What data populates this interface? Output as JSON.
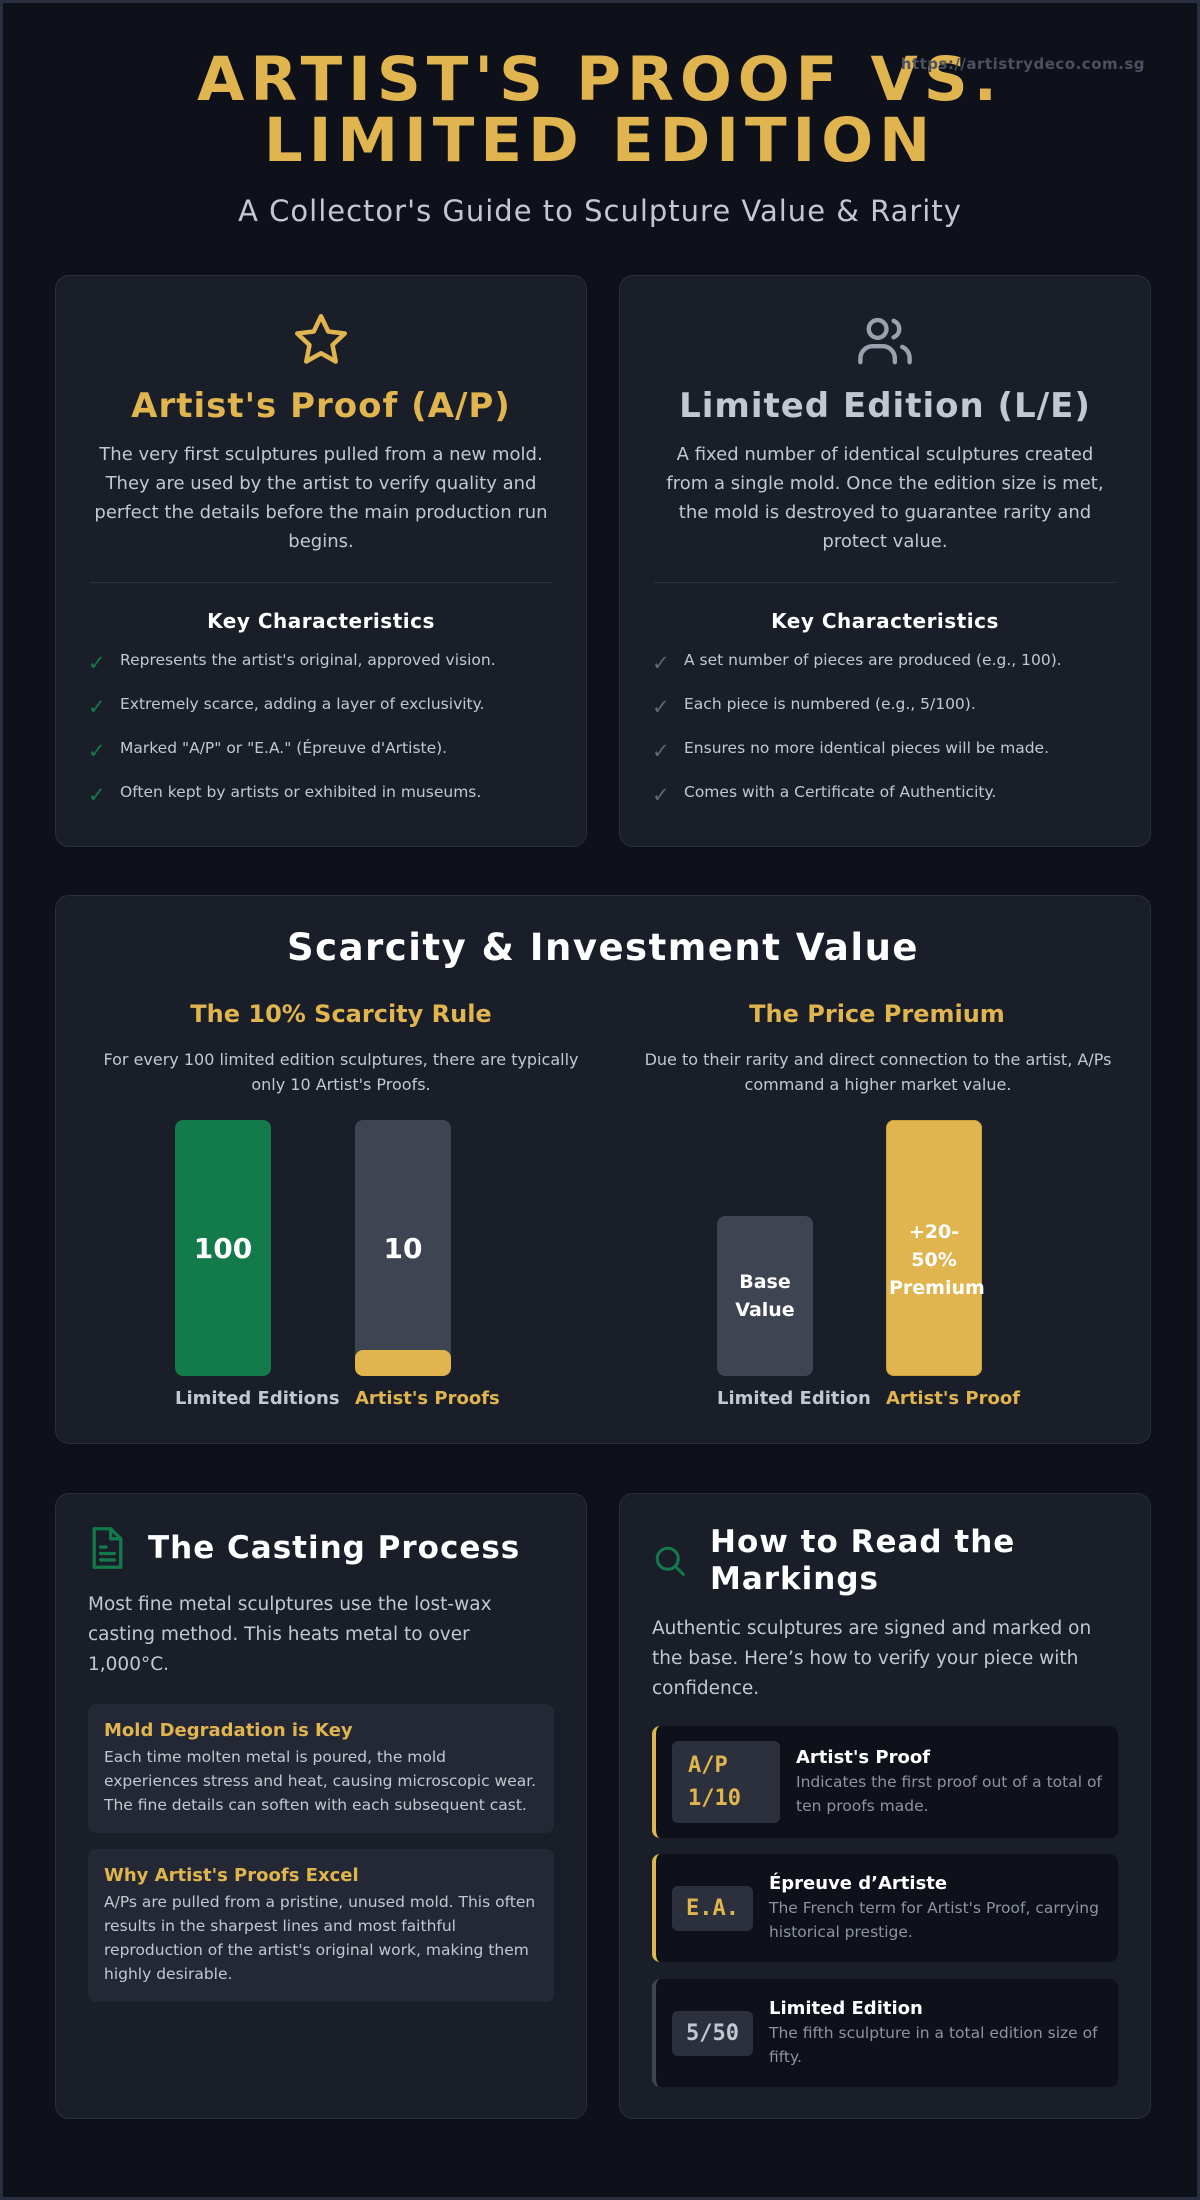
{
  "header": {
    "url": "https://artistrydeco.com.sg",
    "title_line1": "ARTIST'S PROOF VS.",
    "title_line2": "LIMITED EDITION",
    "subtitle": "A Collector's Guide to Sculpture Value & Rarity"
  },
  "colors": {
    "gold": "#e0b54f",
    "green": "#137a4b",
    "slate": "#3f4452",
    "background": "#0e111a",
    "card": "#1a1e28"
  },
  "artist_proof": {
    "icon": "star-icon",
    "title": "Artist's Proof (A/P)",
    "description": "The very first sculptures pulled from a new mold. They are used by the artist to verify quality and perfect the details before the main production run begins.",
    "key_title": "Key Characteristics",
    "items": [
      "Represents the artist's original, approved vision.",
      "Extremely scarce, adding a layer of exclusivity.",
      "Marked \"A/P\" or \"E.A.\" (Épreuve d'Artiste).",
      "Often kept by artists or exhibited in museums."
    ]
  },
  "limited_edition": {
    "icon": "users-icon",
    "title": "Limited Edition (L/E)",
    "description": "A fixed number of identical sculptures created from a single mold. Once the edition size is met, the mold is destroyed to guarantee rarity and protect value.",
    "key_title": "Key Characteristics",
    "items": [
      "A set number of pieces are produced (e.g., 100).",
      "Each piece is numbered (e.g., 5/100).",
      "Ensures no more identical pieces will be made.",
      "Comes with a Certificate of Authenticity."
    ]
  },
  "scarcity": {
    "title": "Scarcity & Investment Value",
    "rule": {
      "title": "The 10% Scarcity Rule",
      "description": "For every 100 limited edition sculptures, there are typically only 10 Artist's Proofs.",
      "bars": [
        {
          "value": 100,
          "value_label": "100",
          "label": "Limited Editions"
        },
        {
          "value": 10,
          "value_label": "10",
          "label": "Artist's Proofs"
        }
      ]
    },
    "premium": {
      "title": "The Price Premium",
      "description": "Due to their rarity and direct connection to the artist, A/Ps command a higher market value.",
      "bars": [
        {
          "value_label": "Base Value",
          "label": "Limited Edition"
        },
        {
          "value_label": "+20-50% Premium",
          "label": "Artist's Proof"
        }
      ]
    }
  },
  "casting": {
    "icon": "document-icon",
    "title": "The Casting Process",
    "intro": "Most fine metal sculptures use the lost-wax casting method. This heats metal to over 1,000°C.",
    "boxes": [
      {
        "title": "Mold Degradation is Key",
        "text": "Each time molten metal is poured, the mold experiences stress and heat, causing microscopic wear. The fine details can soften with each subsequent cast."
      },
      {
        "title": "Why Artist's Proofs Excel",
        "text": "A/Ps are pulled from a pristine, unused mold. This often results in the sharpest lines and most faithful reproduction of the artist's original work, making them highly desirable."
      }
    ]
  },
  "markings": {
    "icon": "search-icon",
    "title": "How to Read the Markings",
    "intro": "Authentic sculptures are signed and marked on the base. Here’s how to verify your piece with confidence.",
    "items": [
      {
        "code_line1": "A/P",
        "code_line2": "1/10",
        "title": "Artist's Proof",
        "desc": "Indicates the first proof out of a total of ten proofs made."
      },
      {
        "code": "E.A.",
        "title": "Épreuve d’Artiste",
        "desc": "The French term for Artist's Proof, carrying historical prestige."
      },
      {
        "code": "5/50",
        "title": "Limited Edition",
        "desc": "The fifth sculpture in a total edition size of fifty."
      }
    ]
  }
}
